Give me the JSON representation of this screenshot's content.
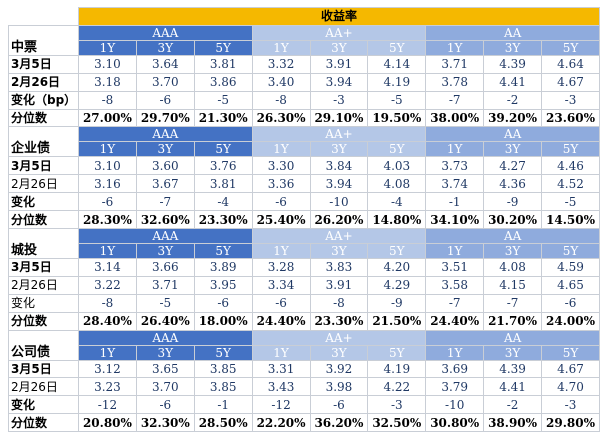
{
  "title": "收益率",
  "groups": [
    "AAA",
    "AA+",
    "AA"
  ],
  "tenors": [
    "1Y",
    "3Y",
    "5Y"
  ],
  "sections": [
    {
      "name": "中票",
      "rows": [
        {
          "label": "3月5日",
          "bold": true,
          "values": [
            "3.10",
            "3.64",
            "3.81",
            "3.32",
            "3.91",
            "4.14",
            "3.71",
            "4.39",
            "4.64"
          ]
        },
        {
          "label": "2月26日",
          "bold": true,
          "values": [
            "3.18",
            "3.70",
            "3.86",
            "3.40",
            "3.94",
            "4.19",
            "3.78",
            "4.41",
            "4.67"
          ]
        },
        {
          "label": "变化（bp）",
          "bold": true,
          "values": [
            "-8",
            "-6",
            "-5",
            "-8",
            "-3",
            "-5",
            "-7",
            "-2",
            "-3"
          ]
        },
        {
          "label": "分位数",
          "bold": true,
          "pct": true,
          "values": [
            "27.00%",
            "29.70%",
            "21.30%",
            "26.30%",
            "29.10%",
            "19.50%",
            "38.00%",
            "39.20%",
            "23.60%"
          ]
        }
      ]
    },
    {
      "name": "企业债",
      "rows": [
        {
          "label": "3月5日",
          "bold": true,
          "values": [
            "3.10",
            "3.60",
            "3.76",
            "3.30",
            "3.84",
            "4.03",
            "3.73",
            "4.27",
            "4.46"
          ]
        },
        {
          "label": "2月26日",
          "bold": false,
          "values": [
            "3.16",
            "3.67",
            "3.81",
            "3.36",
            "3.94",
            "4.08",
            "3.74",
            "4.36",
            "4.52"
          ]
        },
        {
          "label": "变化",
          "bold": true,
          "values": [
            "-6",
            "-7",
            "-4",
            "-6",
            "-10",
            "-4",
            "-1",
            "-9",
            "-5"
          ]
        },
        {
          "label": "分位数",
          "bold": true,
          "pct": true,
          "values": [
            "28.30%",
            "32.60%",
            "23.30%",
            "25.40%",
            "26.20%",
            "14.80%",
            "34.10%",
            "30.20%",
            "14.50%"
          ]
        }
      ]
    },
    {
      "name": "城投",
      "rows": [
        {
          "label": "3月5日",
          "bold": true,
          "values": [
            "3.14",
            "3.66",
            "3.89",
            "3.28",
            "3.83",
            "4.20",
            "3.51",
            "4.08",
            "4.59"
          ]
        },
        {
          "label": "2月26日",
          "bold": false,
          "values": [
            "3.22",
            "3.71",
            "3.95",
            "3.34",
            "3.91",
            "4.29",
            "3.58",
            "4.15",
            "4.65"
          ]
        },
        {
          "label": "变化",
          "bold": false,
          "values": [
            "-8",
            "-5",
            "-6",
            "-6",
            "-8",
            "-9",
            "-7",
            "-7",
            "-6"
          ]
        },
        {
          "label": "分位数",
          "bold": true,
          "pct": true,
          "values": [
            "28.40%",
            "26.40%",
            "18.00%",
            "24.40%",
            "23.30%",
            "21.50%",
            "24.40%",
            "21.70%",
            "24.00%"
          ]
        }
      ]
    },
    {
      "name": "公司债",
      "rows": [
        {
          "label": "3月5日",
          "bold": true,
          "values": [
            "3.12",
            "3.65",
            "3.85",
            "3.31",
            "3.92",
            "4.19",
            "3.69",
            "4.39",
            "4.67"
          ]
        },
        {
          "label": "2月26日",
          "bold": false,
          "values": [
            "3.23",
            "3.70",
            "3.85",
            "3.43",
            "3.98",
            "4.22",
            "3.79",
            "4.41",
            "4.70"
          ]
        },
        {
          "label": "变化",
          "bold": true,
          "values": [
            "-12",
            "-6",
            "-1",
            "-12",
            "-6",
            "-3",
            "-10",
            "-2",
            "-3"
          ]
        },
        {
          "label": "分位数",
          "bold": true,
          "pct": true,
          "values": [
            "20.80%",
            "32.30%",
            "28.50%",
            "22.20%",
            "36.20%",
            "32.50%",
            "30.80%",
            "38.90%",
            "29.80%"
          ]
        }
      ]
    }
  ]
}
